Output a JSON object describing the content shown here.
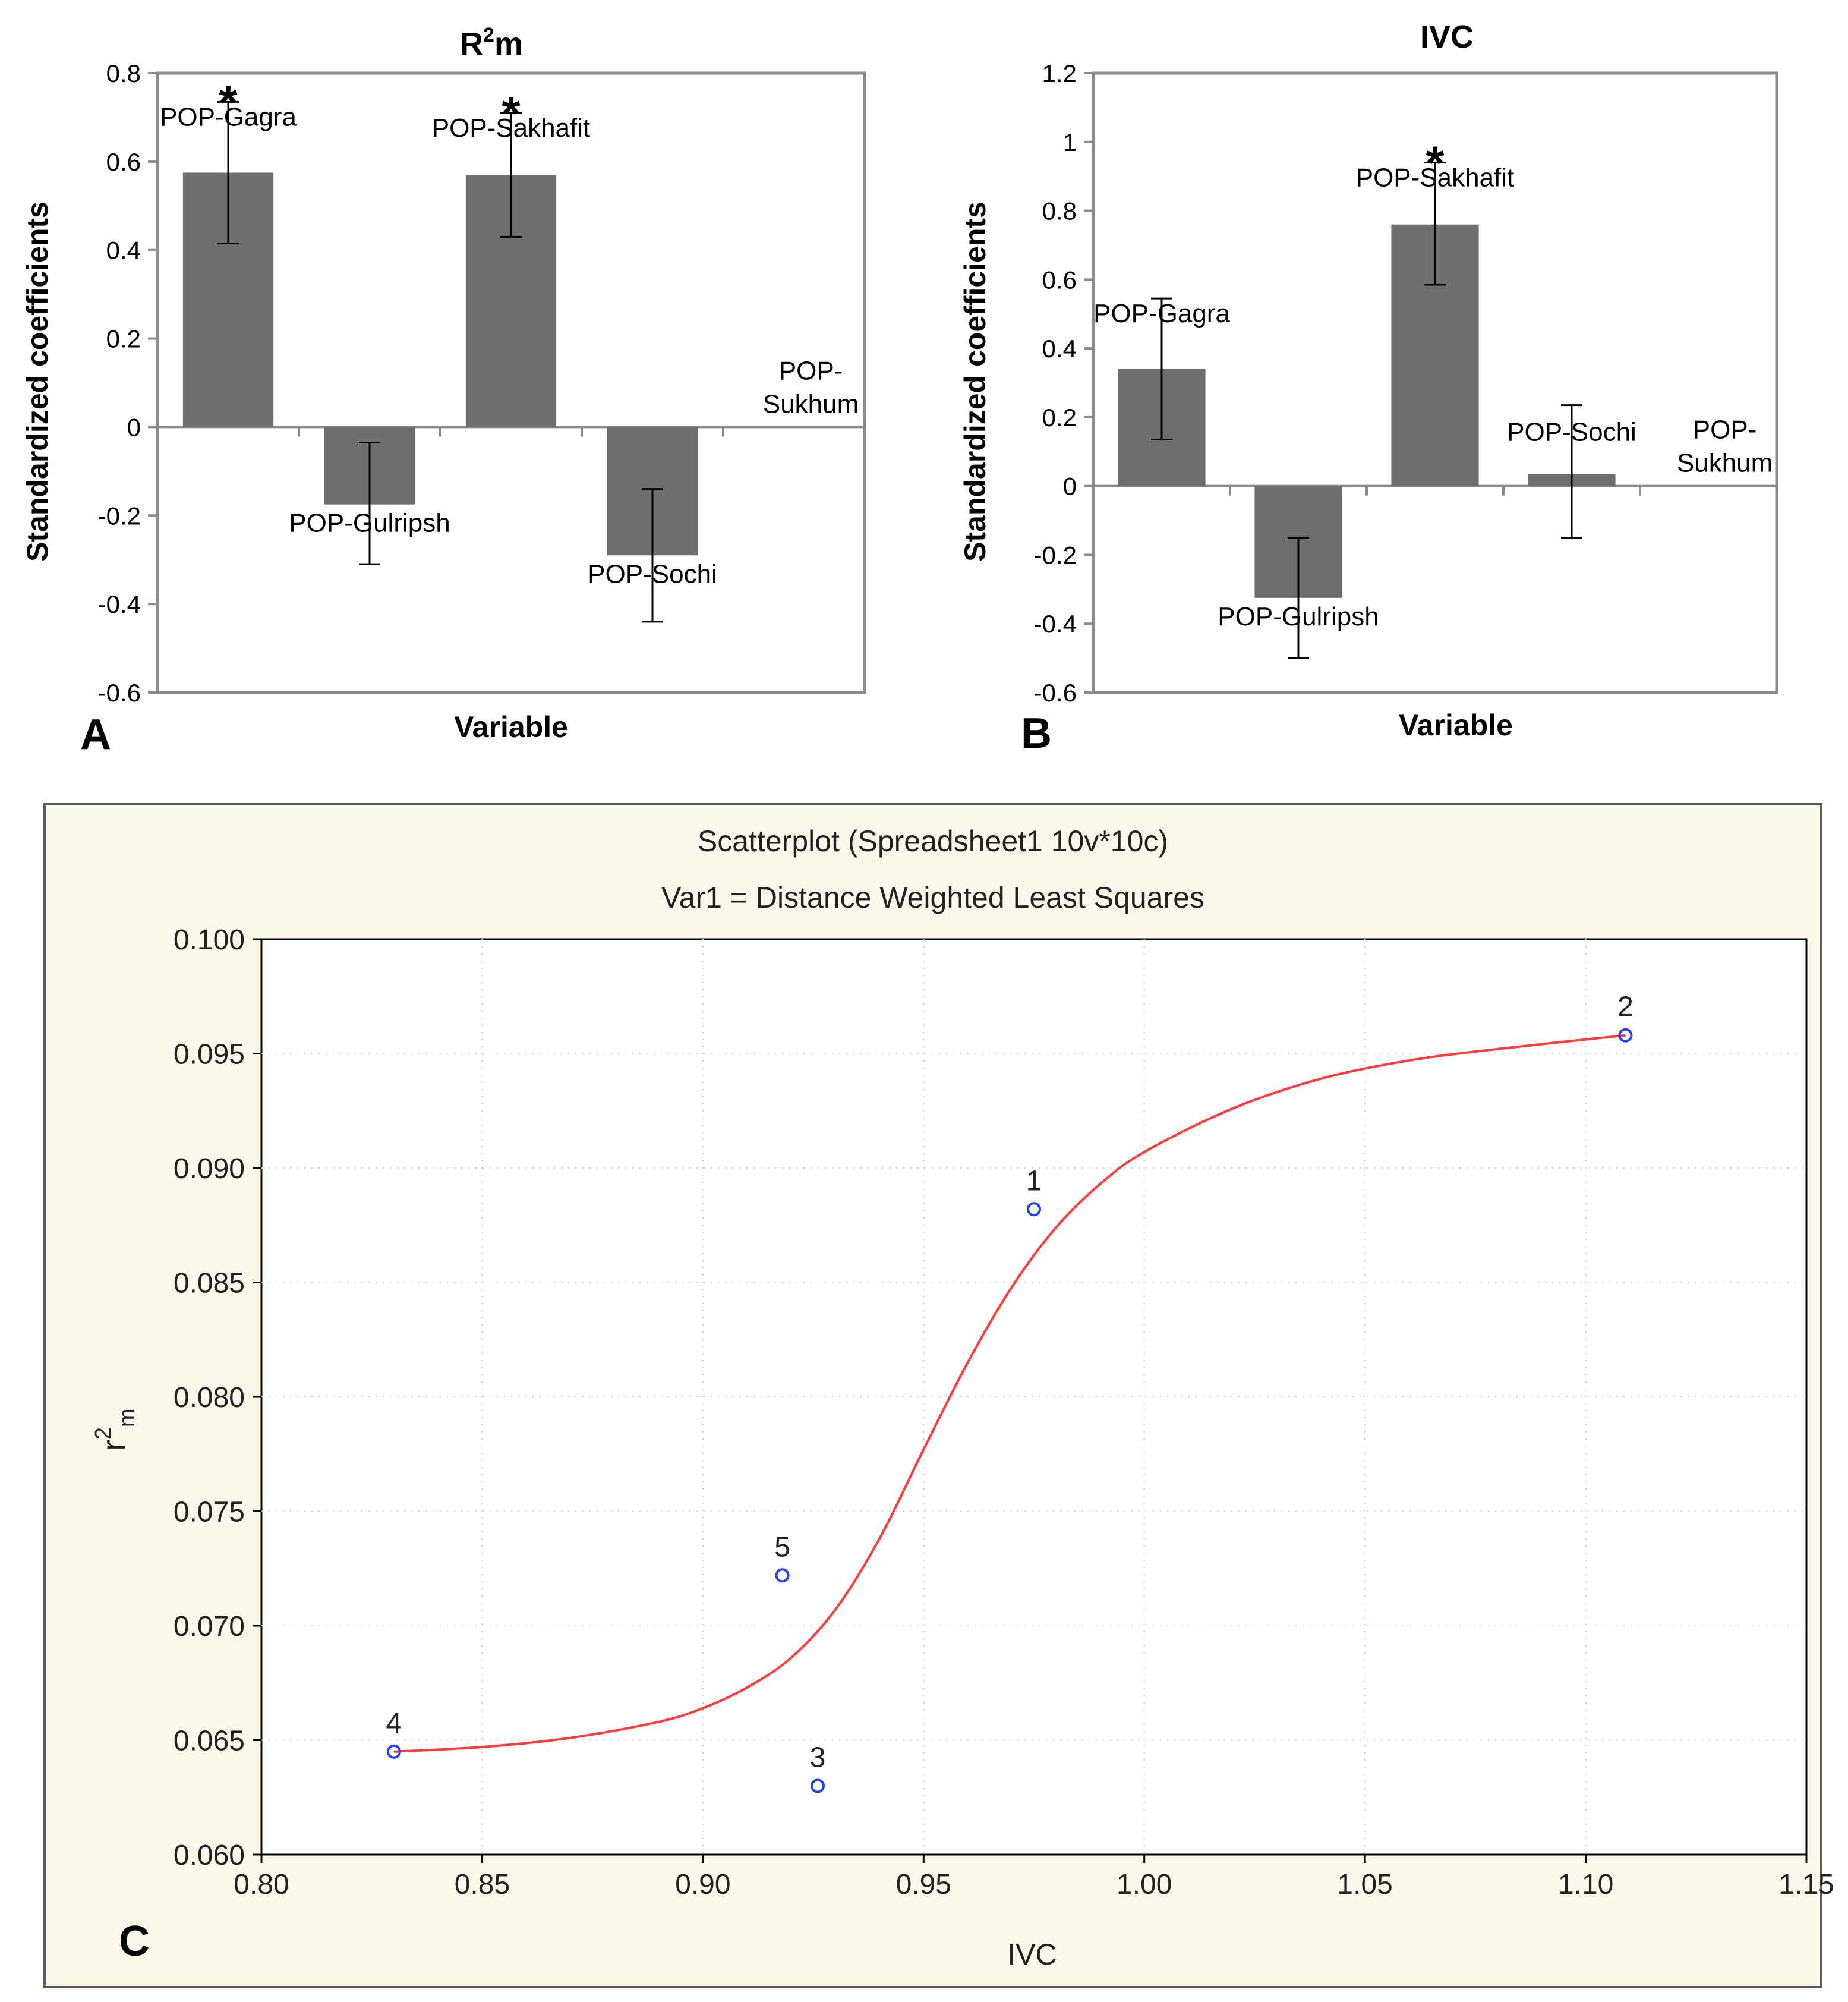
{
  "colors": {
    "bar": "#6e6e6e",
    "plot_bg": "#ffffff",
    "panel_c_bg": "#fdf9ea",
    "fit_line": "#ff3a3a",
    "point": "#1f3fff",
    "text": "#000000",
    "grid": "#c8c8c8"
  },
  "chart_data": [
    {
      "panel": "A",
      "type": "bar",
      "title_base": "R",
      "title_sup": "2",
      "title_tail": "m",
      "xlabel": "Variable",
      "ylabel": "Standardized coefficients",
      "ylim": [
        -0.6,
        0.8
      ],
      "yticks": [
        -0.6,
        -0.4,
        -0.2,
        0,
        0.2,
        0.4,
        0.6,
        0.8
      ],
      "ytick_labels": [
        "-0.6",
        "-0.4",
        "-0.2",
        "0",
        "0.2",
        "0.4",
        "0.6",
        "0.8"
      ],
      "categories": [
        "POP-Gagra",
        "POP-Gulripsh",
        "POP-Sakhafit",
        "POP-Sochi",
        "POP-Sukhum"
      ],
      "label_lines": [
        [
          "POP-Gagra"
        ],
        [
          "POP-Gulripsh"
        ],
        [
          "POP-Sakhafit"
        ],
        [
          "POP-Sochi"
        ],
        [
          "POP-",
          "Sukhum"
        ]
      ],
      "values": [
        0.575,
        -0.175,
        0.57,
        -0.29,
        0
      ],
      "error_low": [
        0.415,
        -0.31,
        0.43,
        -0.44,
        null
      ],
      "error_high": [
        0.735,
        -0.035,
        0.71,
        -0.14,
        null
      ],
      "significant": [
        true,
        false,
        true,
        false,
        false
      ],
      "sig_marker": "*"
    },
    {
      "panel": "B",
      "type": "bar",
      "title": "IVC",
      "xlabel": "Variable",
      "ylabel": "Standardized coefficients",
      "ylim": [
        -0.6,
        1.2
      ],
      "yticks": [
        -0.6,
        -0.4,
        -0.2,
        0,
        0.2,
        0.4,
        0.6,
        0.8,
        1,
        1.2
      ],
      "ytick_labels": [
        "-0.6",
        "-0.4",
        "-0.2",
        "0",
        "0.2",
        "0.4",
        "0.6",
        "0.8",
        "1",
        "1.2"
      ],
      "categories": [
        "POP-Gagra",
        "POP-Gulripsh",
        "POP-Sakhafit",
        "POP-Sochi",
        "POP-Sukhum"
      ],
      "label_lines": [
        [
          "POP-Gagra"
        ],
        [
          "POP-Gulripsh"
        ],
        [
          "POP-Sakhafit"
        ],
        [
          "POP-Sochi"
        ],
        [
          "POP-",
          "Sukhum"
        ]
      ],
      "values": [
        0.34,
        -0.325,
        0.76,
        0.035,
        0
      ],
      "error_low": [
        0.135,
        -0.5,
        0.585,
        -0.15,
        null
      ],
      "error_high": [
        0.545,
        -0.15,
        0.94,
        0.235,
        null
      ],
      "significant": [
        false,
        false,
        true,
        false,
        false
      ],
      "sig_marker": "*"
    },
    {
      "panel": "C",
      "type": "scatter",
      "title": "Scatterplot (Spreadsheet1 10v*10c)",
      "subtitle": "Var1 = Distance Weighted Least Squares",
      "xlabel": "IVC",
      "ylabel_base": "r",
      "ylabel_sup": "2",
      "ylabel_sub": "m",
      "xlim": [
        0.8,
        1.15
      ],
      "ylim": [
        0.06,
        0.1
      ],
      "xticks": [
        0.8,
        0.85,
        0.9,
        0.95,
        1.0,
        1.05,
        1.1,
        1.15
      ],
      "xtick_labels": [
        "0.80",
        "0.85",
        "0.90",
        "0.95",
        "1.00",
        "1.05",
        "1.10",
        "1.15"
      ],
      "yticks": [
        0.06,
        0.065,
        0.07,
        0.075,
        0.08,
        0.085,
        0.09,
        0.095,
        0.1
      ],
      "ytick_labels": [
        "0.060",
        "0.065",
        "0.070",
        "0.075",
        "0.080",
        "0.085",
        "0.090",
        "0.095",
        "0.100"
      ],
      "points": [
        {
          "label": "1",
          "x": 0.975,
          "y": 0.0882
        },
        {
          "label": "2",
          "x": 1.109,
          "y": 0.0958
        },
        {
          "label": "3",
          "x": 0.926,
          "y": 0.063
        },
        {
          "label": "4",
          "x": 0.83,
          "y": 0.0645
        },
        {
          "label": "5",
          "x": 0.918,
          "y": 0.0722
        }
      ],
      "fit_curve": {
        "x": [
          0.83,
          0.85,
          0.87,
          0.89,
          0.9,
          0.91,
          0.92,
          0.93,
          0.94,
          0.95,
          0.96,
          0.97,
          0.98,
          0.99,
          1.0,
          1.02,
          1.04,
          1.06,
          1.08,
          1.109
        ],
        "y": [
          0.0645,
          0.0647,
          0.0651,
          0.0658,
          0.0664,
          0.0673,
          0.0686,
          0.0707,
          0.0738,
          0.0777,
          0.0815,
          0.0848,
          0.0874,
          0.0893,
          0.0907,
          0.0926,
          0.0939,
          0.0947,
          0.0952,
          0.0958
        ]
      }
    }
  ],
  "panel_letters": {
    "a": "A",
    "b": "B",
    "c": "C"
  }
}
